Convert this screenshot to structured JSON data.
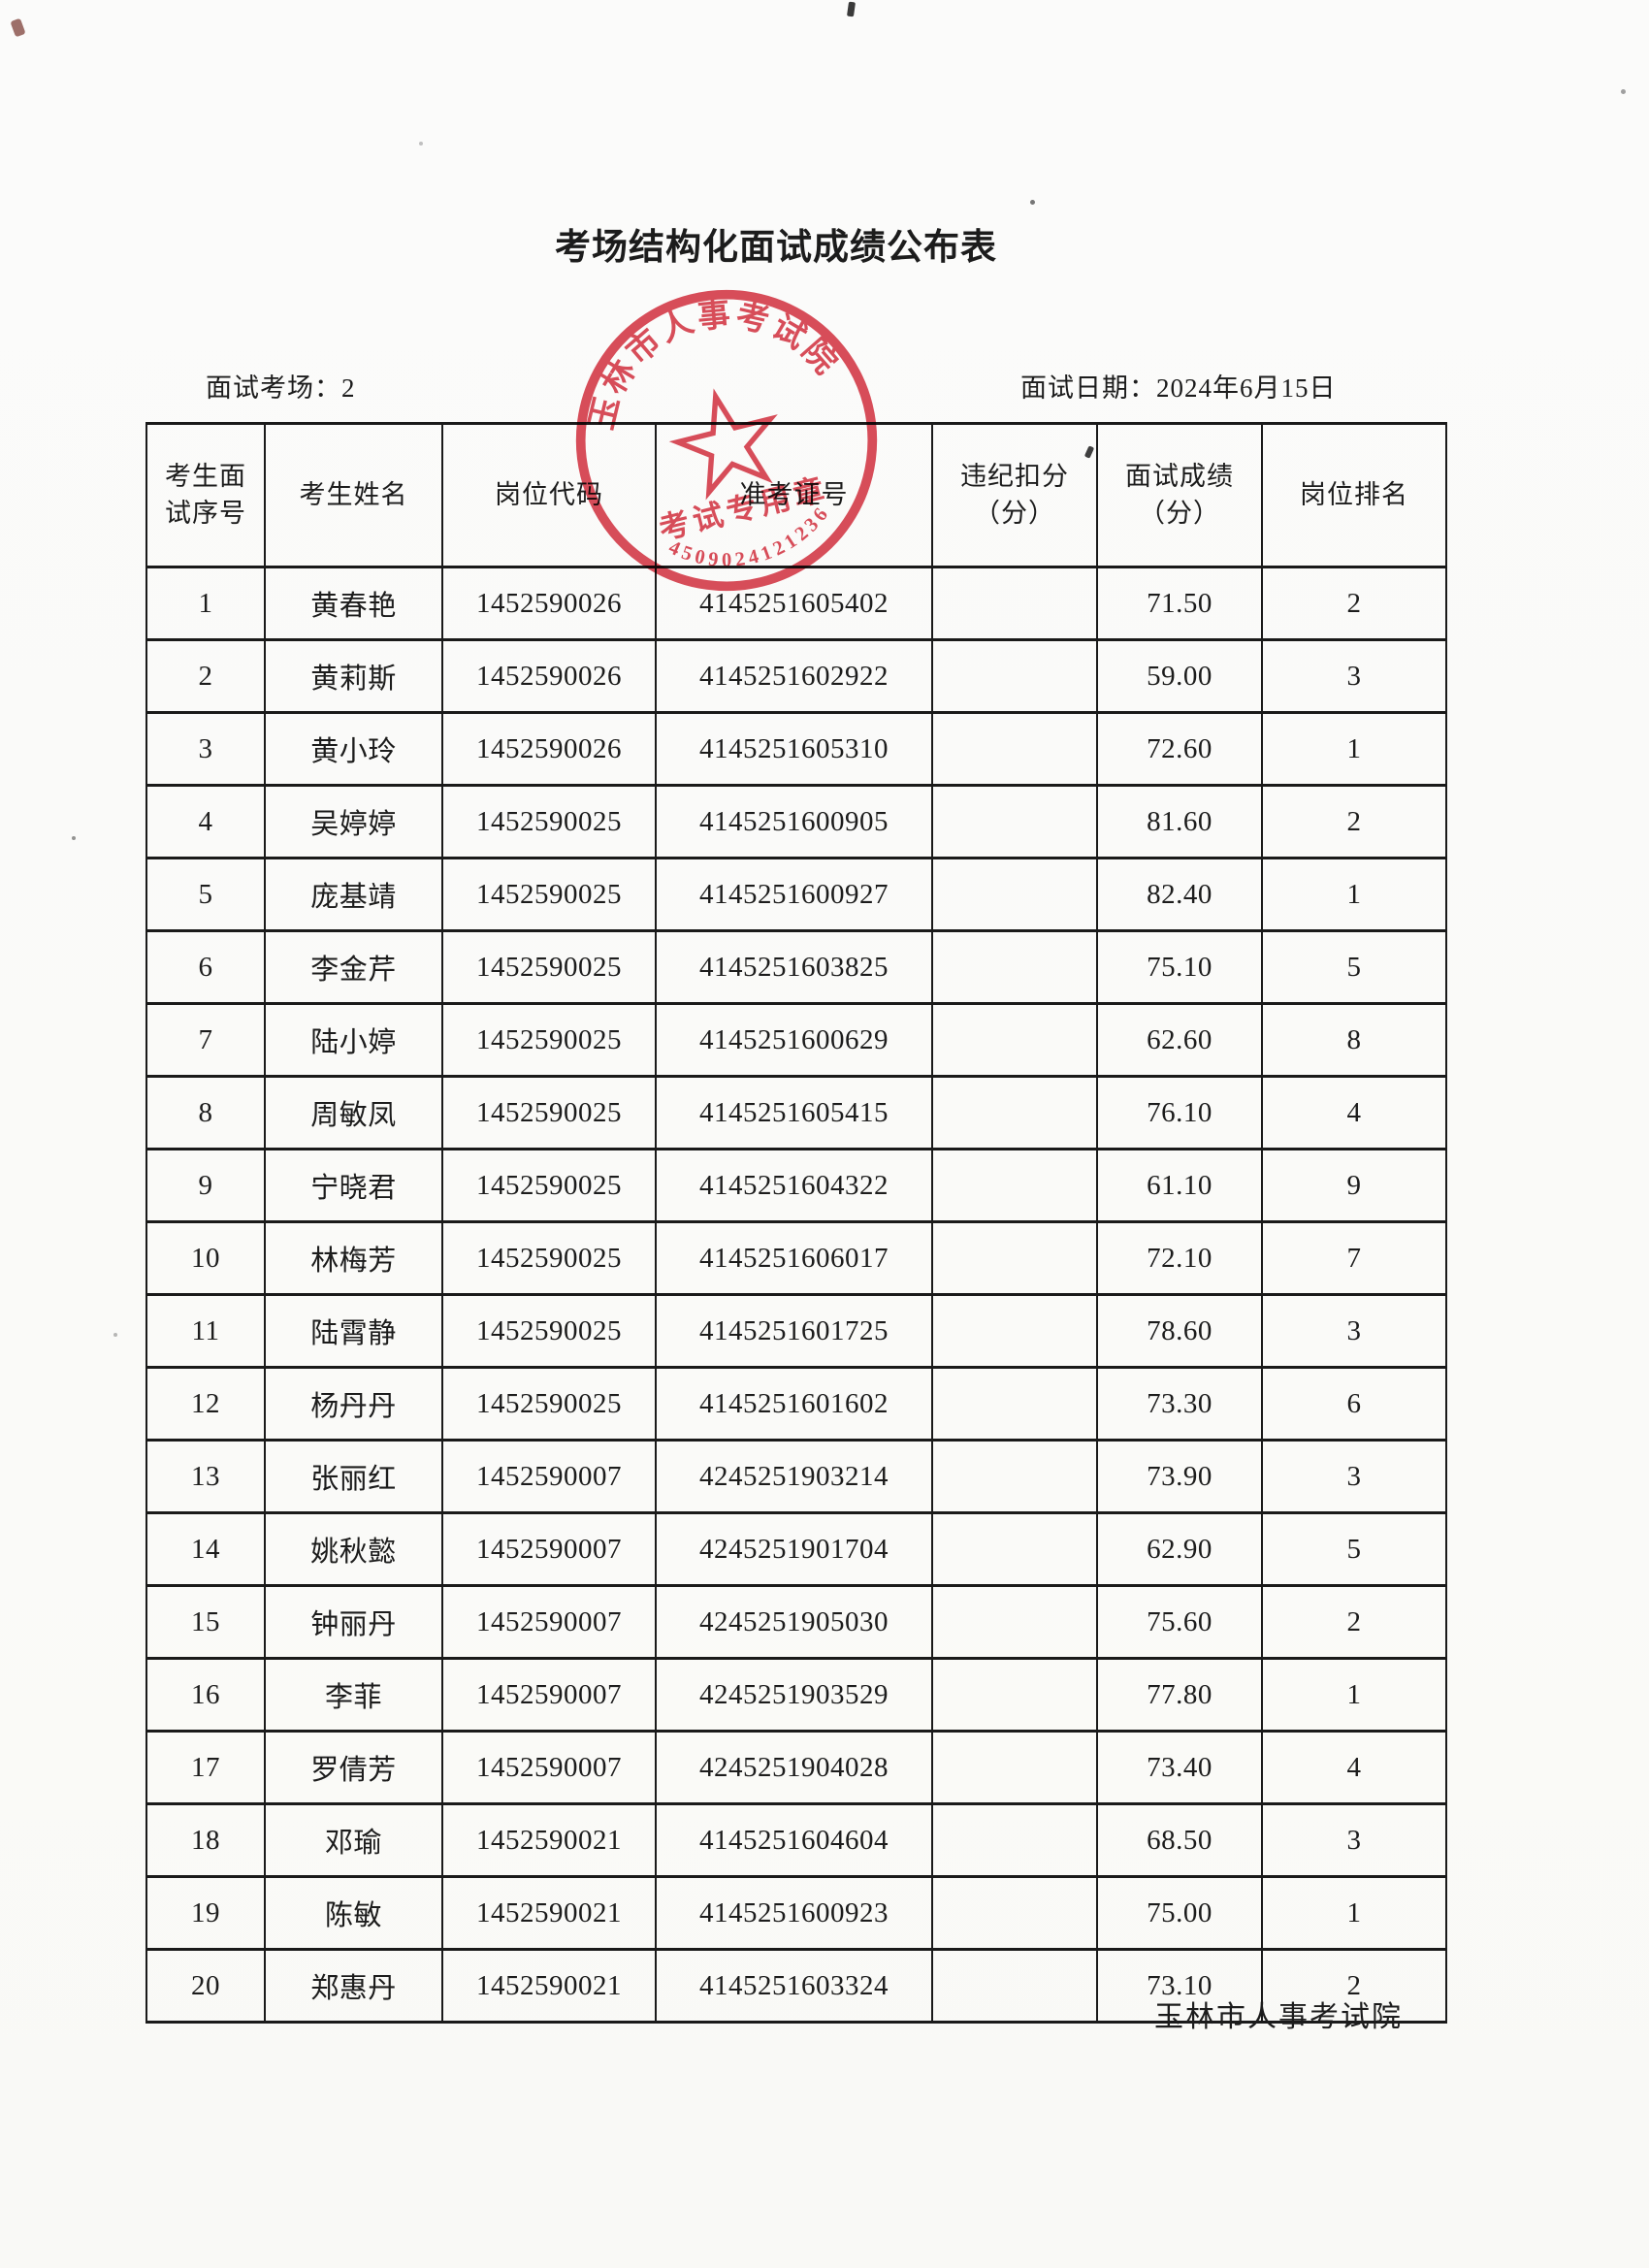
{
  "page": {
    "title": "考场结构化面试成绩公布表",
    "room_label": "面试考场：2",
    "date_label": "面试日期：2024年6月15日",
    "footer": "玉林市人事考试院"
  },
  "stamp": {
    "arc_text": "玉林市人事考试院",
    "center_text": "考试专用章",
    "serial": "4509024121236",
    "color": "#d9404e"
  },
  "table": {
    "headers": [
      "考生面\n试序号",
      "考生姓名",
      "岗位代码",
      "准考证号",
      "违纪扣分\n（分）",
      "面试成绩\n（分）",
      "岗位排名"
    ],
    "rows": [
      [
        "1",
        "黄春艳",
        "1452590026",
        "4145251605402",
        "",
        "71.50",
        "2"
      ],
      [
        "2",
        "黄莉斯",
        "1452590026",
        "4145251602922",
        "",
        "59.00",
        "3"
      ],
      [
        "3",
        "黄小玲",
        "1452590026",
        "4145251605310",
        "",
        "72.60",
        "1"
      ],
      [
        "4",
        "吴婷婷",
        "1452590025",
        "4145251600905",
        "",
        "81.60",
        "2"
      ],
      [
        "5",
        "庞基靖",
        "1452590025",
        "4145251600927",
        "",
        "82.40",
        "1"
      ],
      [
        "6",
        "李金芹",
        "1452590025",
        "4145251603825",
        "",
        "75.10",
        "5"
      ],
      [
        "7",
        "陆小婷",
        "1452590025",
        "4145251600629",
        "",
        "62.60",
        "8"
      ],
      [
        "8",
        "周敏凤",
        "1452590025",
        "4145251605415",
        "",
        "76.10",
        "4"
      ],
      [
        "9",
        "宁晓君",
        "1452590025",
        "4145251604322",
        "",
        "61.10",
        "9"
      ],
      [
        "10",
        "林梅芳",
        "1452590025",
        "4145251606017",
        "",
        "72.10",
        "7"
      ],
      [
        "11",
        "陆霄静",
        "1452590025",
        "4145251601725",
        "",
        "78.60",
        "3"
      ],
      [
        "12",
        "杨丹丹",
        "1452590025",
        "4145251601602",
        "",
        "73.30",
        "6"
      ],
      [
        "13",
        "张丽红",
        "1452590007",
        "4245251903214",
        "",
        "73.90",
        "3"
      ],
      [
        "14",
        "姚秋懿",
        "1452590007",
        "4245251901704",
        "",
        "62.90",
        "5"
      ],
      [
        "15",
        "钟丽丹",
        "1452590007",
        "4245251905030",
        "",
        "75.60",
        "2"
      ],
      [
        "16",
        "李菲",
        "1452590007",
        "4245251903529",
        "",
        "77.80",
        "1"
      ],
      [
        "17",
        "罗倩芳",
        "1452590007",
        "4245251904028",
        "",
        "73.40",
        "4"
      ],
      [
        "18",
        "邓瑜",
        "1452590021",
        "4145251604604",
        "",
        "68.50",
        "3"
      ],
      [
        "19",
        "陈敏",
        "1452590021",
        "4145251600923",
        "",
        "75.00",
        "1"
      ],
      [
        "20",
        "郑惠丹",
        "1452590021",
        "4145251603324",
        "",
        "73.10",
        "2"
      ]
    ]
  }
}
